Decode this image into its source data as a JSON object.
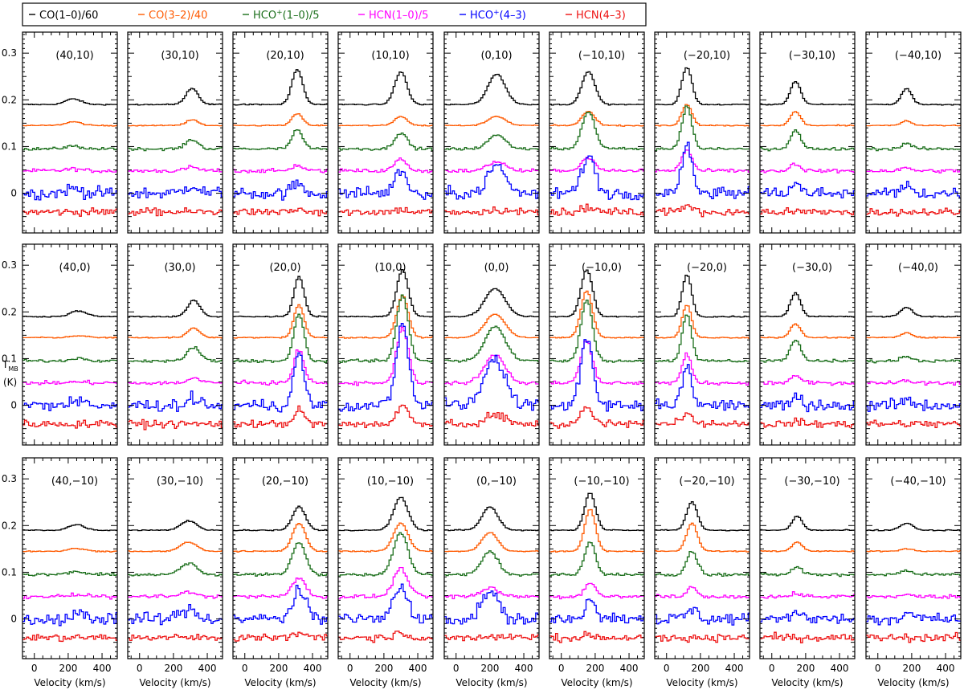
{
  "chart_data": {
    "type": "line",
    "description_note": "3x9 grid of molecular-line spectra panels (offsets in arcsec), main-beam temperature vs velocity",
    "legend": [
      {
        "name": "CO(1–0)/60",
        "color": "#000000"
      },
      {
        "name": "CO(3–2)/40",
        "color": "#ff5a00"
      },
      {
        "name": "HCO+(1–0)/5",
        "base": "HCO",
        "sup": "+",
        "rest": "(1–0)/5",
        "color": "#1a6e1a"
      },
      {
        "name": "HCN(1–0)/5",
        "color": "#ff00ff"
      },
      {
        "name": "HCO+(4–3)",
        "base": "HCO",
        "sup": "+",
        "rest": "(4–3)",
        "color": "#0000ff"
      },
      {
        "name": "HCN(4–3)",
        "color": "#ee1111"
      }
    ],
    "series_offsets": [
      0.19,
      0.145,
      0.095,
      0.048,
      0.0,
      -0.04
    ],
    "series_noise": [
      0.0012,
      0.0012,
      0.003,
      0.004,
      0.013,
      0.008
    ],
    "xlabel": "Velocity (km/s)",
    "ylabel": {
      "main": "T",
      "sub": "MB",
      "unit": "(K)"
    },
    "xlim": [
      -70,
      490
    ],
    "ylim": [
      -0.085,
      0.345
    ],
    "xticks_major": [
      0,
      200,
      400
    ],
    "xtick_labels": [
      "0",
      "200",
      "400"
    ],
    "yticks_major": [
      0,
      0.1,
      0.2,
      0.3
    ],
    "ytick_labels": [
      "0",
      "0.1",
      "0.2",
      "0.3"
    ],
    "columns": [
      40,
      30,
      20,
      10,
      0,
      -10,
      -20,
      -30,
      -40
    ],
    "rows": [
      10,
      0,
      -10
    ],
    "panel_labels": [
      [
        "(40,10)",
        "(30,10)",
        "(20,10)",
        "(10,10)",
        "(0,10)",
        "(−10,10)",
        "(−20,10)",
        "(−30,10)",
        "(−40,10)"
      ],
      [
        "(40,0)",
        "(30,0)",
        "(20,0)",
        "(10,0)",
        "(0,0)",
        "(−10,0)",
        "(−20,0)",
        "(−30,0)",
        "(−40,0)"
      ],
      [
        "(40,−10)",
        "(30,−10)",
        "(20,−10)",
        "(10,−10)",
        "(0,−10)",
        "(−10,−10)",
        "(−20,−10)",
        "(−30,−10)",
        "(−40,−10)"
      ]
    ],
    "panel_center_velocity": [
      [
        230,
        310,
        310,
        300,
        240,
        160,
        120,
        140,
        170
      ],
      [
        260,
        320,
        320,
        310,
        230,
        150,
        120,
        140,
        170
      ],
      [
        250,
        290,
        320,
        300,
        200,
        170,
        150,
        150,
        170
      ]
    ],
    "panel_width_kms": [
      [
        110,
        85,
        75,
        85,
        120,
        90,
        70,
        70,
        70
      ],
      [
        110,
        85,
        70,
        80,
        140,
        80,
        65,
        70,
        80
      ],
      [
        110,
        110,
        90,
        100,
        110,
        75,
        75,
        70,
        90
      ]
    ],
    "line_amplitudes": [
      [
        [
          0.012,
          0.008,
          0.006,
          0.004,
          0.01,
          0.0
        ],
        [
          0.035,
          0.012,
          0.02,
          0.008,
          0.018,
          0.0
        ],
        [
          0.075,
          0.025,
          0.04,
          0.012,
          0.02,
          0.005
        ],
        [
          0.07,
          0.02,
          0.035,
          0.025,
          0.05,
          0.005
        ],
        [
          0.065,
          0.02,
          0.03,
          0.02,
          0.06,
          0.005
        ],
        [
          0.07,
          0.03,
          0.08,
          0.03,
          0.08,
          0.01
        ],
        [
          0.08,
          0.045,
          0.09,
          0.045,
          0.1,
          0.015
        ],
        [
          0.05,
          0.03,
          0.04,
          0.015,
          0.02,
          0.0
        ],
        [
          0.035,
          0.01,
          0.012,
          0.006,
          0.015,
          0.0
        ]
      ],
      [
        [
          0.012,
          0.004,
          0.006,
          0.002,
          0.008,
          0.0
        ],
        [
          0.035,
          0.02,
          0.03,
          0.01,
          0.015,
          0.0
        ],
        [
          0.085,
          0.07,
          0.1,
          0.07,
          0.11,
          0.03
        ],
        [
          0.1,
          0.09,
          0.14,
          0.12,
          0.18,
          0.04
        ],
        [
          0.06,
          0.05,
          0.075,
          0.06,
          0.1,
          0.02
        ],
        [
          0.1,
          0.1,
          0.13,
          0.09,
          0.14,
          0.035
        ],
        [
          0.09,
          0.07,
          0.1,
          0.06,
          0.08,
          0.02
        ],
        [
          0.05,
          0.03,
          0.045,
          0.015,
          0.02,
          0.005
        ],
        [
          0.02,
          0.01,
          0.01,
          0.004,
          0.01,
          0.0
        ]
      ],
      [
        [
          0.012,
          0.006,
          0.006,
          0.003,
          0.01,
          0.0
        ],
        [
          0.02,
          0.02,
          0.025,
          0.01,
          0.02,
          0.0
        ],
        [
          0.05,
          0.06,
          0.07,
          0.04,
          0.06,
          0.01
        ],
        [
          0.07,
          0.06,
          0.09,
          0.06,
          0.07,
          0.01
        ],
        [
          0.05,
          0.04,
          0.05,
          0.02,
          0.06,
          0.005
        ],
        [
          0.08,
          0.09,
          0.07,
          0.03,
          0.04,
          0.005
        ],
        [
          0.06,
          0.06,
          0.05,
          0.02,
          0.02,
          0.0
        ],
        [
          0.03,
          0.02,
          0.015,
          0.006,
          0.015,
          0.0
        ],
        [
          0.015,
          0.005,
          0.008,
          0.003,
          0.01,
          0.0
        ]
      ]
    ]
  }
}
